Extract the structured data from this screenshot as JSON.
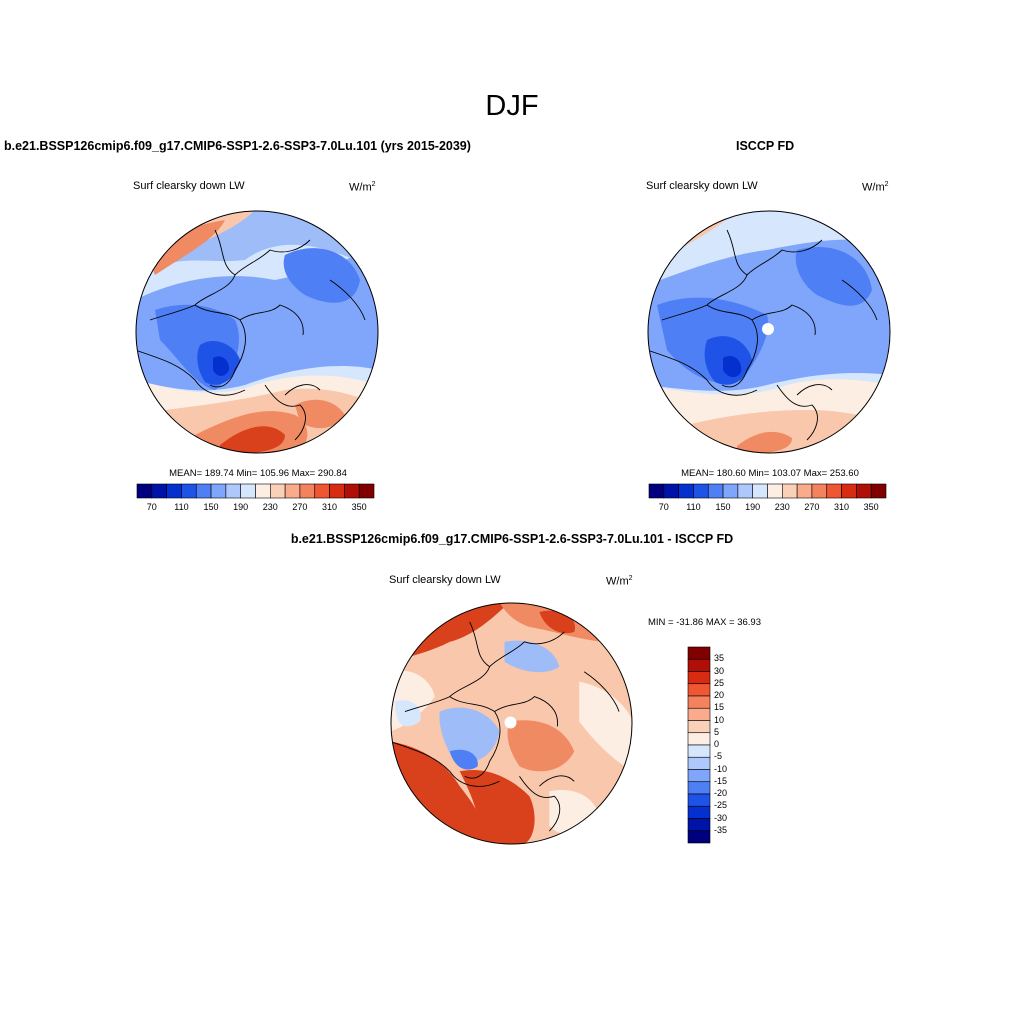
{
  "page": {
    "title": "DJF"
  },
  "panels": {
    "model": {
      "title": "b.e21.BSSP126cmip6.f09_g17.CMIP6-SSP1-2.6-SSP3-7.0Lu.101 (yrs 2015-2039)",
      "variable": "Surf clearsky down LW",
      "units_base": "W/m",
      "units_exp": "2",
      "stats": "MEAN= 189.74  Min= 105.96  Max= 290.84"
    },
    "obs": {
      "title": "ISCCP FD",
      "variable": "Surf clearsky down LW",
      "units_base": "W/m",
      "units_exp": "2",
      "stats": "MEAN= 180.60  Min= 103.07  Max= 253.60"
    },
    "diff": {
      "title": "b.e21.BSSP126cmip6.f09_g17.CMIP6-SSP1-2.6-SSP3-7.0Lu.101 - ISCCP FD",
      "variable": "Surf clearsky down LW",
      "units_base": "W/m",
      "units_exp": "2",
      "stats": "MIN = -31.86 MAX =  36.93"
    }
  },
  "colorbars": {
    "abs": {
      "colors": [
        "#00007f",
        "#0013a8",
        "#0530d0",
        "#1f52e6",
        "#4f7ff5",
        "#7fa6fa",
        "#aec8fc",
        "#d6e6fd",
        "#fdeee3",
        "#fbd0b8",
        "#f9ab8c",
        "#f5825f",
        "#ef5632",
        "#d92b12",
        "#b00f07",
        "#800000"
      ],
      "tick_labels": [
        "70",
        "110",
        "150",
        "190",
        "230",
        "270",
        "310",
        "350"
      ]
    },
    "diff": {
      "colors": [
        "#800000",
        "#b00f07",
        "#d92b12",
        "#ef5632",
        "#f5825f",
        "#f9ab8c",
        "#fbd0b8",
        "#fdeee3",
        "#d6e6fd",
        "#aec8fc",
        "#7fa6fa",
        "#4f7ff5",
        "#1f52e6",
        "#0530d0",
        "#0013a8",
        "#00007f"
      ],
      "tick_labels": [
        "35",
        "30",
        "25",
        "20",
        "15",
        "10",
        "5",
        "0",
        "-5",
        "-10",
        "-15",
        "-20",
        "-25",
        "-30",
        "-35"
      ]
    }
  },
  "map_colors": {
    "warm_strong": "#d9401c",
    "warm": "#f08a63",
    "warm_light": "#f9c7ac",
    "cream": "#fdeee3",
    "cool_light": "#d6e6fd",
    "cool": "#9dbcf8",
    "cool_mid": "#7fa6fa",
    "cool_strong": "#4f7ff5",
    "cool_deep": "#1f52e6",
    "cool_darkest": "#0530d0"
  }
}
